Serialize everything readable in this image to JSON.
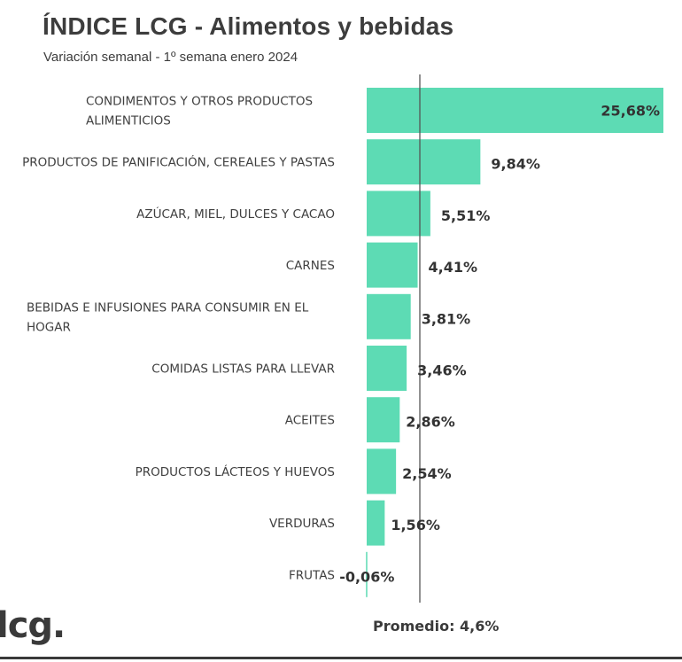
{
  "header": {
    "title": "ÍNDICE LCG - Alimentos y bebidas",
    "subtitle": "Variación semanal - 1º semana enero 2024"
  },
  "brand": {
    "logo_text": "lcg."
  },
  "colors": {
    "bar": "#5ddbb4",
    "reference_line": "#555555",
    "text": "#3a3a3a"
  },
  "chart_data": {
    "type": "bar",
    "orientation": "horizontal",
    "title": "ÍNDICE LCG - Alimentos y bebidas",
    "subtitle": "Variación semanal - 1º semana enero 2024",
    "categories": [
      [
        "CONDIMENTOS Y OTROS PRODUCTOS",
        "ALIMENTICIOS"
      ],
      [
        "PRODUCTOS DE PANIFICACIÓN, CEREALES Y PASTAS"
      ],
      [
        "AZÚCAR, MIEL, DULCES Y CACAO"
      ],
      [
        "CARNES"
      ],
      [
        "BEBIDAS E INFUSIONES PARA CONSUMIR EN EL",
        "HOGAR"
      ],
      [
        "COMIDAS LISTAS PARA LLEVAR"
      ],
      [
        "ACEITES"
      ],
      [
        "PRODUCTOS LÁCTEOS Y HUEVOS"
      ],
      [
        "VERDURAS"
      ],
      [
        "FRUTAS"
      ]
    ],
    "values": [
      25.68,
      9.84,
      5.51,
      4.41,
      3.81,
      3.46,
      2.86,
      2.54,
      1.56,
      -0.06
    ],
    "value_labels": [
      "25,68%",
      "9,84%",
      "5,51%",
      "4,41%",
      "3,81%",
      "3,46%",
      "2,86%",
      "2,54%",
      "1,56%",
      "-0,06%"
    ],
    "xlim": [
      0,
      25.68
    ],
    "reference_line": {
      "value": 4.6,
      "label": "Promedio: 4,6%"
    },
    "grid": false,
    "legend": "none"
  }
}
